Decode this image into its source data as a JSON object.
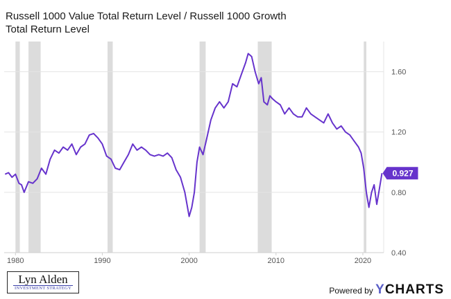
{
  "title": "Russell 1000 Value Total Return Level / Russell 1000 Growth Total Return Level",
  "logo": {
    "name": "Lyn Alden",
    "subtitle": "INVESTMENT STRATEGY"
  },
  "powered_by": {
    "label": "Powered by",
    "brand": "YCHARTS"
  },
  "colors": {
    "line": "#6633cc",
    "recession": "#dcdcdc",
    "grid": "#e4e4e4",
    "text": "#555555"
  },
  "chart_data": {
    "type": "line",
    "title": "Russell 1000 Value Total Return Level / Russell 1000 Growth Total Return Level",
    "xlim": [
      1978.7,
      2022.4
    ],
    "ylim": [
      0.4,
      1.8
    ],
    "x_ticks": [
      1980,
      1990,
      2000,
      2010,
      2020
    ],
    "x_tick_labels": [
      "1980",
      "1990",
      "2000",
      "2010",
      "2020"
    ],
    "y_ticks": [
      0.4,
      0.8,
      1.2,
      1.6
    ],
    "y_tick_labels": [
      "0.40",
      "0.80",
      "1.20",
      "1.60"
    ],
    "grid": "horizontal",
    "y_axis_side": "right",
    "last_value_label": "0.927",
    "recessions": [
      [
        1980.0,
        1980.5
      ],
      [
        1981.5,
        1982.9
      ],
      [
        1990.6,
        1991.2
      ],
      [
        2001.2,
        2001.9
      ],
      [
        2007.9,
        2009.5
      ],
      [
        2020.1,
        2020.4
      ]
    ],
    "series": [
      {
        "x": [
          1978.8,
          1979.2,
          1979.6,
          1980.0,
          1980.4,
          1980.7,
          1981.0,
          1981.5,
          1982.0,
          1982.5,
          1983.0,
          1983.5,
          1984.0,
          1984.5,
          1985.0,
          1985.5,
          1986.0,
          1986.5,
          1987.0,
          1987.5,
          1988.0,
          1988.5,
          1989.0,
          1989.5,
          1990.0,
          1990.5,
          1991.0,
          1991.5,
          1992.0,
          1992.5,
          1993.0,
          1993.5,
          1994.0,
          1994.5,
          1995.0,
          1995.5,
          1996.0,
          1996.5,
          1997.0,
          1997.5,
          1998.0,
          1998.5,
          1999.0,
          1999.5,
          2000.0,
          2000.3,
          2000.6,
          2000.9,
          2001.2,
          2001.6,
          2002.0,
          2002.5,
          2003.0,
          2003.5,
          2004.0,
          2004.5,
          2005.0,
          2005.5,
          2006.0,
          2006.5,
          2006.8,
          2007.2,
          2007.6,
          2008.0,
          2008.3,
          2008.6,
          2009.0,
          2009.3,
          2009.6,
          2010.0,
          2010.5,
          2011.0,
          2011.5,
          2012.0,
          2012.5,
          2013.0,
          2013.5,
          2014.0,
          2014.5,
          2015.0,
          2015.5,
          2016.0,
          2016.5,
          2017.0,
          2017.5,
          2018.0,
          2018.5,
          2019.0,
          2019.5,
          2019.8,
          2020.1,
          2020.4,
          2020.7,
          2021.0,
          2021.3,
          2021.6,
          2021.9,
          2022.2
        ],
        "y": [
          0.92,
          0.93,
          0.9,
          0.92,
          0.86,
          0.85,
          0.8,
          0.87,
          0.86,
          0.89,
          0.96,
          0.92,
          1.02,
          1.08,
          1.06,
          1.1,
          1.08,
          1.12,
          1.05,
          1.1,
          1.12,
          1.18,
          1.19,
          1.16,
          1.12,
          1.04,
          1.02,
          0.96,
          0.95,
          1.0,
          1.05,
          1.12,
          1.08,
          1.1,
          1.08,
          1.05,
          1.04,
          1.05,
          1.04,
          1.06,
          1.03,
          0.95,
          0.9,
          0.8,
          0.64,
          0.7,
          0.8,
          1.0,
          1.1,
          1.05,
          1.15,
          1.28,
          1.36,
          1.4,
          1.36,
          1.4,
          1.52,
          1.5,
          1.58,
          1.66,
          1.72,
          1.7,
          1.6,
          1.52,
          1.56,
          1.4,
          1.38,
          1.44,
          1.42,
          1.4,
          1.38,
          1.32,
          1.36,
          1.32,
          1.3,
          1.3,
          1.36,
          1.32,
          1.3,
          1.28,
          1.26,
          1.32,
          1.26,
          1.22,
          1.24,
          1.2,
          1.18,
          1.14,
          1.1,
          1.06,
          0.96,
          0.8,
          0.7,
          0.8,
          0.85,
          0.72,
          0.82,
          0.927
        ]
      }
    ]
  }
}
